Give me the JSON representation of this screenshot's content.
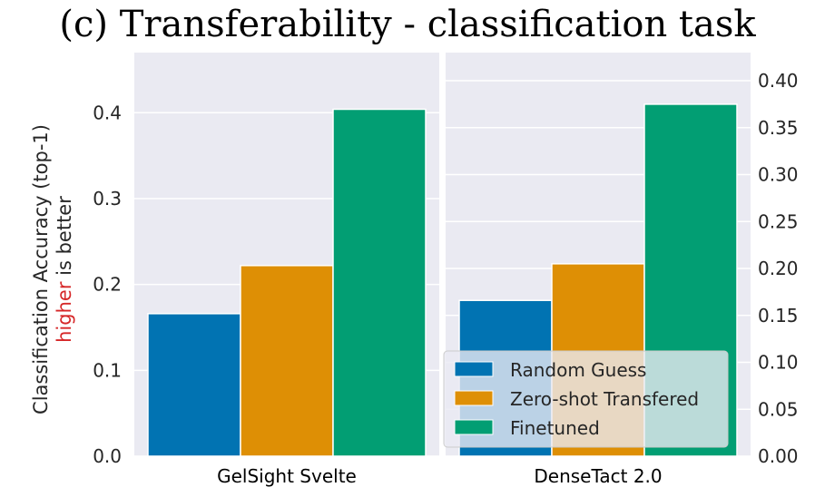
{
  "chart_data": {
    "title": "(c) Transferability - classification task",
    "type": "bar",
    "ylabel_line1": "Classification Accuracy (top-1)",
    "ylabel_line2_highlight": "higher",
    "ylabel_line2_rest": " is better",
    "highlight_color": "#d62728",
    "series_colors": [
      "#0173b2",
      "#de8f05",
      "#029e73"
    ],
    "legend": {
      "placement": "lower-right",
      "entries": [
        "Random Guess",
        "Zero-shot Transfered",
        "Finetuned"
      ]
    },
    "panels": [
      {
        "category": "GelSight Svelte",
        "axis_side": "left",
        "ylim": [
          0,
          0.47
        ],
        "yticks": [
          0.0,
          0.1,
          0.2,
          0.3,
          0.4
        ],
        "ytick_labels": [
          "0.0",
          "0.1",
          "0.2",
          "0.3",
          "0.4"
        ],
        "values": [
          0.166,
          0.222,
          0.404
        ]
      },
      {
        "category": "DenseTact 2.0",
        "axis_side": "right",
        "ylim": [
          0,
          0.43
        ],
        "yticks": [
          0.0,
          0.05,
          0.1,
          0.15,
          0.2,
          0.25,
          0.3,
          0.35,
          0.4
        ],
        "ytick_labels": [
          "0.00",
          "0.05",
          "0.10",
          "0.15",
          "0.20",
          "0.25",
          "0.30",
          "0.35",
          "0.40"
        ],
        "values": [
          0.166,
          0.205,
          0.375
        ]
      }
    ]
  }
}
